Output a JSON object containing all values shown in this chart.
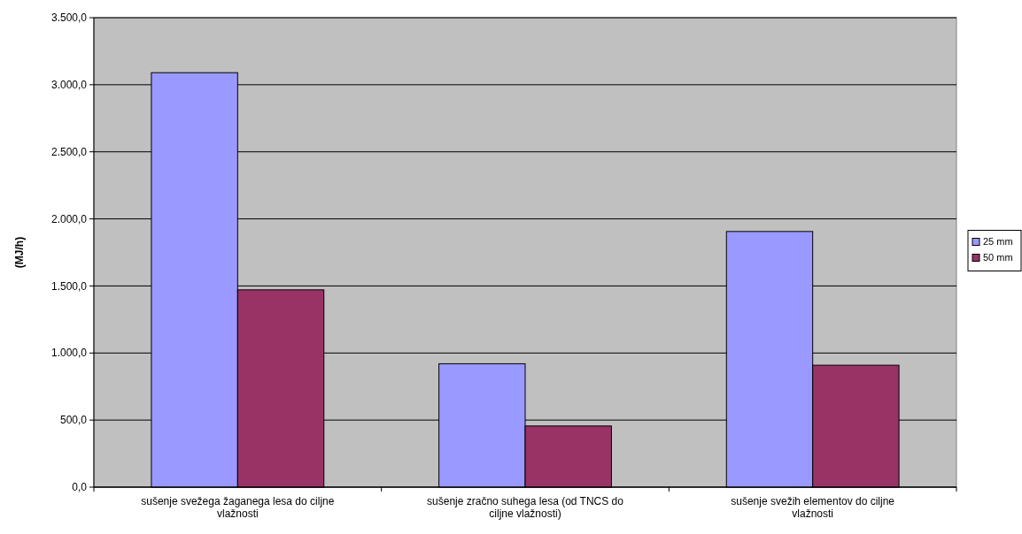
{
  "chart_data": {
    "type": "bar",
    "ylabel": "(MJ/h)",
    "categories": [
      "sušenje svežega žaganega lesa do ciljne vlažnosti",
      "sušenje zračno suhega lesa (od TNCS do ciljne vlažnosti)",
      "sušenje svežih elementov do ciljne vlažnosti"
    ],
    "series": [
      {
        "name": "25 mm",
        "color": "#9999ff",
        "values": [
          3090,
          920,
          1906
        ]
      },
      {
        "name": "50 mm",
        "color": "#993366",
        "values": [
          1471,
          456,
          909
        ]
      }
    ],
    "ylim": [
      0,
      3500
    ],
    "yticks": [
      {
        "value": 0,
        "label": "0,0"
      },
      {
        "value": 500,
        "label": "500,0"
      },
      {
        "value": 1000,
        "label": "1.000,0"
      },
      {
        "value": 1500,
        "label": "1.500,0"
      },
      {
        "value": 2000,
        "label": "2.000,0"
      },
      {
        "value": 2500,
        "label": "2.500,0"
      },
      {
        "value": 3000,
        "label": "3.000,0"
      },
      {
        "value": 3500,
        "label": "3.500,0"
      }
    ],
    "grid": "y",
    "legend": "right"
  }
}
